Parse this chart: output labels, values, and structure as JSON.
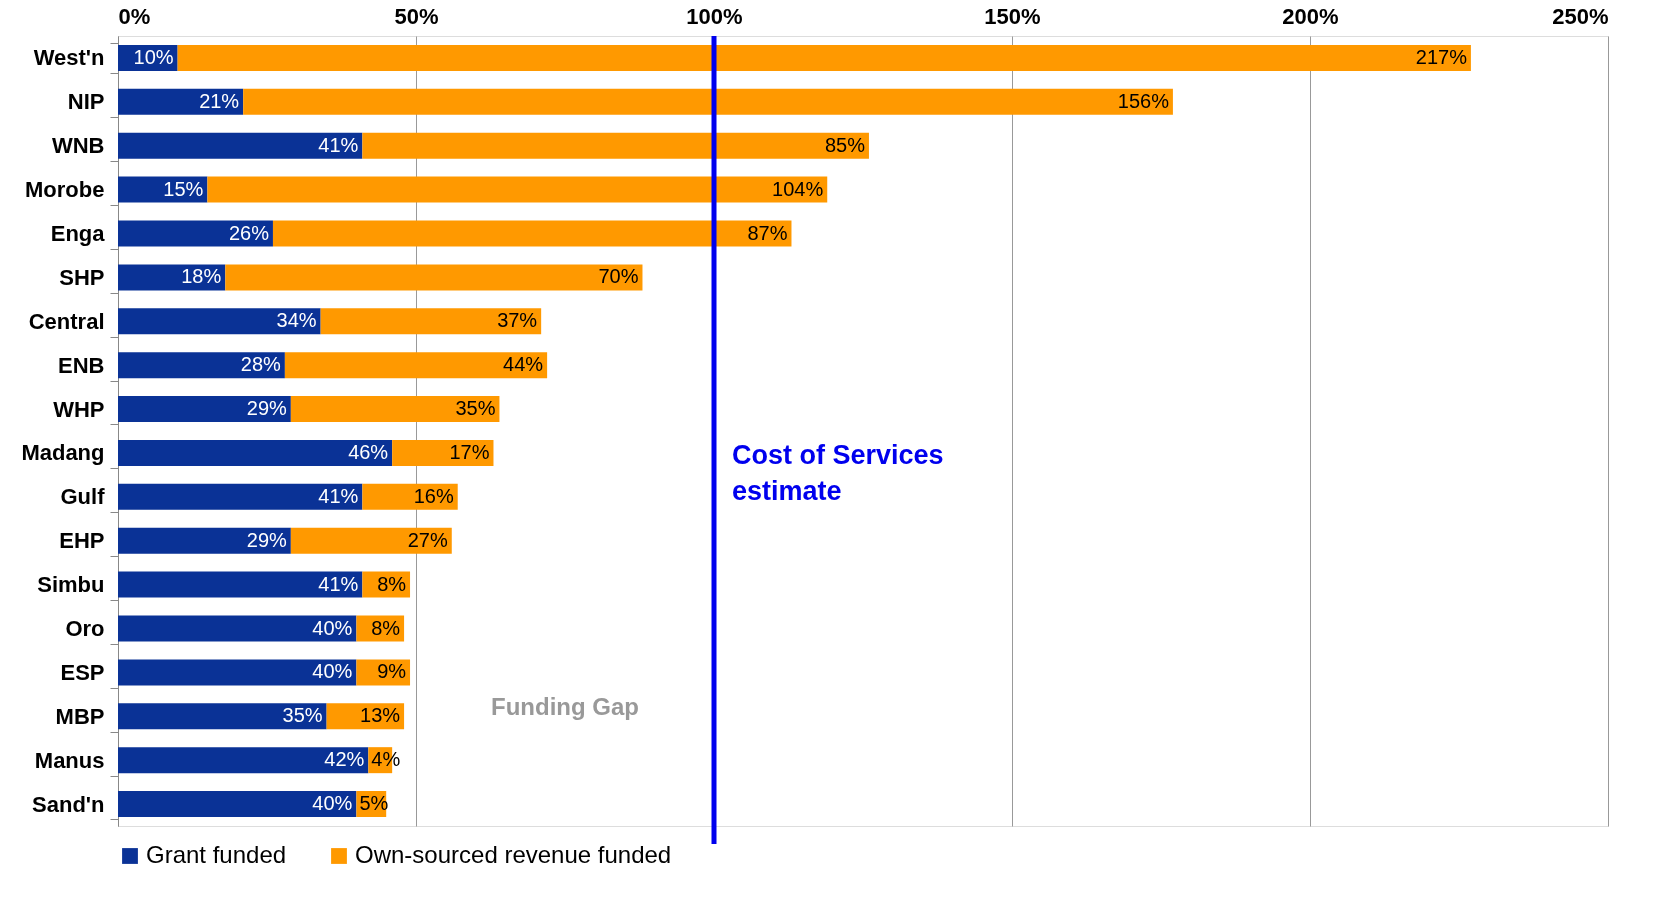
{
  "chart_data": {
    "type": "bar",
    "orientation": "horizontal",
    "stacked": true,
    "categories": [
      "West'n",
      "NIP",
      "WNB",
      "Morobe",
      "Enga",
      "SHP",
      "Central",
      "ENB",
      "WHP",
      "Madang",
      "Gulf",
      "EHP",
      "Simbu",
      "Oro",
      "ESP",
      "MBP",
      "Manus",
      "Sand'n"
    ],
    "series": [
      {
        "name": "Grant funded",
        "color": "#0a3296",
        "values": [
          10,
          21,
          41,
          15,
          26,
          18,
          34,
          28,
          29,
          46,
          41,
          29,
          41,
          40,
          40,
          35,
          42,
          40
        ],
        "value_labels": [
          "10%",
          "21%",
          "41%",
          "15%",
          "26%",
          "18%",
          "34%",
          "28%",
          "29%",
          "46%",
          "41%",
          "29%",
          "41%",
          "40%",
          "40%",
          "35%",
          "42%",
          "40%"
        ]
      },
      {
        "name": "Own-sourced revenue funded",
        "color": "#ff9900",
        "values": [
          217,
          156,
          85,
          104,
          87,
          70,
          37,
          44,
          35,
          17,
          16,
          27,
          8,
          8,
          9,
          13,
          4,
          5
        ],
        "value_labels": [
          "217%",
          "156%",
          "85%",
          "104%",
          "87%",
          "70%",
          "37%",
          "44%",
          "35%",
          "17%",
          "16%",
          "27%",
          "8%",
          "8%",
          "9%",
          "13%",
          "4%",
          "5%"
        ]
      }
    ],
    "xlim": [
      0,
      250
    ],
    "xticks": [
      {
        "value": 0,
        "label": "0%"
      },
      {
        "value": 50,
        "label": "50%"
      },
      {
        "value": 100,
        "label": "100%"
      },
      {
        "value": 150,
        "label": "150%"
      },
      {
        "value": 200,
        "label": "200%"
      },
      {
        "value": 250,
        "label": "250%"
      }
    ],
    "grid": "x",
    "legend": "bottom",
    "ref_lines": [
      {
        "axis": "x",
        "value": 100,
        "label": "Cost of Services estimate",
        "color": "#0000ee"
      }
    ],
    "annotations": [
      "Funding Gap"
    ]
  }
}
